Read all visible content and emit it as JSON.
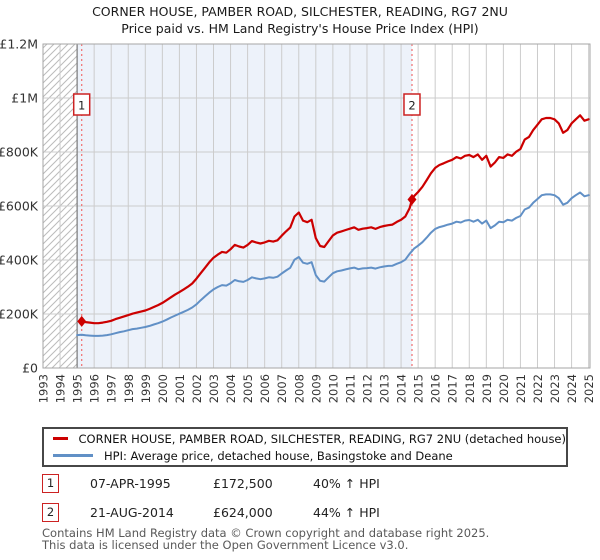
{
  "title": {
    "line1": "CORNER HOUSE, PAMBER ROAD, SILCHESTER, READING, RG7 2NU",
    "line2": "Price paid vs. HM Land Registry's House Price Index (HPI)"
  },
  "colors": {
    "red": "#cc0000",
    "blue": "#6190c6",
    "shade": "#edf2fa",
    "grid": "#cccccc",
    "border": "#a6a6a6",
    "hatch": "#bbbbbb",
    "dotted": "#f26d6d",
    "data_start_line": "#7a7a7a",
    "axis_text": "#333333",
    "marker_border": "#cc2222"
  },
  "chart_data": {
    "type": "line",
    "title": "Price paid vs. HM Land Registry's House Price Index (HPI)",
    "xlabel": "",
    "ylabel": "Price (GBP)",
    "x_domain": [
      1993,
      2025.08
    ],
    "y_domain_gbp": [
      0,
      1200000
    ],
    "grid": true,
    "x_ticks": [
      1993,
      1994,
      1995,
      1996,
      1997,
      1998,
      1999,
      2000,
      2001,
      2002,
      2003,
      2004,
      2005,
      2006,
      2007,
      2008,
      2009,
      2010,
      2011,
      2012,
      2013,
      2014,
      2015,
      2016,
      2017,
      2018,
      2019,
      2020,
      2021,
      2022,
      2023,
      2024,
      2025
    ],
    "y_ticks": [
      {
        "value_gbpk": 0,
        "label": "£0"
      },
      {
        "value_gbpk": 200,
        "label": "£200K"
      },
      {
        "value_gbpk": 400,
        "label": "£400K"
      },
      {
        "value_gbpk": 600,
        "label": "£600K"
      },
      {
        "value_gbpk": 800,
        "label": "£800K"
      },
      {
        "value_gbpk": 1000,
        "label": "£1M"
      },
      {
        "value_gbpk": 1200,
        "label": "£1.2M"
      }
    ],
    "hatch_region_end_year": 1995.0,
    "shaded_region_years": [
      1995.0,
      2014.64
    ],
    "legend_position": "bottom",
    "series": [
      {
        "name": "CORNER HOUSE, PAMBER ROAD, SILCHESTER, READING, RG7 2NU (detached house)",
        "color_key": "red",
        "points_year_gbpk": [
          [
            1995.27,
            172.5
          ],
          [
            1995.5,
            170
          ],
          [
            1995.75,
            168
          ],
          [
            1996,
            166
          ],
          [
            1996.25,
            166
          ],
          [
            1996.5,
            168
          ],
          [
            1996.75,
            171
          ],
          [
            1997,
            175
          ],
          [
            1997.25,
            181
          ],
          [
            1997.5,
            186
          ],
          [
            1997.75,
            191
          ],
          [
            1998,
            196
          ],
          [
            1998.25,
            201
          ],
          [
            1998.5,
            205
          ],
          [
            1998.75,
            209
          ],
          [
            1999,
            213
          ],
          [
            1999.25,
            219
          ],
          [
            1999.5,
            226
          ],
          [
            1999.75,
            233
          ],
          [
            2000,
            241
          ],
          [
            2000.25,
            251
          ],
          [
            2000.5,
            262
          ],
          [
            2000.75,
            272
          ],
          [
            2001,
            281
          ],
          [
            2001.25,
            291
          ],
          [
            2001.5,
            301
          ],
          [
            2001.75,
            313
          ],
          [
            2002,
            331
          ],
          [
            2002.25,
            351
          ],
          [
            2002.5,
            371
          ],
          [
            2002.75,
            391
          ],
          [
            2003,
            408
          ],
          [
            2003.25,
            420
          ],
          [
            2003.5,
            430
          ],
          [
            2003.75,
            427
          ],
          [
            2004,
            440
          ],
          [
            2004.25,
            456
          ],
          [
            2004.5,
            450
          ],
          [
            2004.75,
            446
          ],
          [
            2005,
            456
          ],
          [
            2005.25,
            470
          ],
          [
            2005.5,
            465
          ],
          [
            2005.75,
            461
          ],
          [
            2006,
            465
          ],
          [
            2006.25,
            471
          ],
          [
            2006.5,
            468
          ],
          [
            2006.75,
            473
          ],
          [
            2007,
            490
          ],
          [
            2007.25,
            506
          ],
          [
            2007.5,
            520
          ],
          [
            2007.75,
            561
          ],
          [
            2008,
            576
          ],
          [
            2008.25,
            546
          ],
          [
            2008.5,
            540
          ],
          [
            2008.75,
            549
          ],
          [
            2009,
            481
          ],
          [
            2009.25,
            452
          ],
          [
            2009.5,
            448
          ],
          [
            2009.75,
            470
          ],
          [
            2010,
            491
          ],
          [
            2010.25,
            501
          ],
          [
            2010.5,
            506
          ],
          [
            2010.75,
            511
          ],
          [
            2011,
            516
          ],
          [
            2011.25,
            521
          ],
          [
            2011.5,
            512
          ],
          [
            2011.75,
            516
          ],
          [
            2012,
            518
          ],
          [
            2012.25,
            521
          ],
          [
            2012.5,
            515
          ],
          [
            2012.75,
            522
          ],
          [
            2013,
            526
          ],
          [
            2013.25,
            529
          ],
          [
            2013.5,
            531
          ],
          [
            2013.75,
            541
          ],
          [
            2014,
            549
          ],
          [
            2014.25,
            561
          ],
          [
            2014.5,
            592
          ],
          [
            2014.64,
            624
          ],
          [
            2014.75,
            636
          ],
          [
            2015,
            652
          ],
          [
            2015.25,
            671
          ],
          [
            2015.5,
            696
          ],
          [
            2015.75,
            721
          ],
          [
            2016,
            741
          ],
          [
            2016.25,
            752
          ],
          [
            2016.5,
            758
          ],
          [
            2016.75,
            765
          ],
          [
            2017,
            771
          ],
          [
            2017.25,
            781
          ],
          [
            2017.5,
            776
          ],
          [
            2017.75,
            786
          ],
          [
            2018,
            789
          ],
          [
            2018.25,
            781
          ],
          [
            2018.5,
            791
          ],
          [
            2018.75,
            771
          ],
          [
            2019,
            786
          ],
          [
            2019.25,
            746
          ],
          [
            2019.5,
            761
          ],
          [
            2019.75,
            781
          ],
          [
            2020,
            778
          ],
          [
            2020.25,
            791
          ],
          [
            2020.5,
            786
          ],
          [
            2020.75,
            801
          ],
          [
            2021,
            811
          ],
          [
            2021.25,
            846
          ],
          [
            2021.5,
            856
          ],
          [
            2021.75,
            881
          ],
          [
            2022,
            901
          ],
          [
            2022.25,
            921
          ],
          [
            2022.5,
            926
          ],
          [
            2022.75,
            926
          ],
          [
            2023,
            921
          ],
          [
            2023.25,
            906
          ],
          [
            2023.5,
            871
          ],
          [
            2023.75,
            881
          ],
          [
            2024,
            906
          ],
          [
            2024.25,
            921
          ],
          [
            2024.5,
            936
          ],
          [
            2024.75,
            916
          ],
          [
            2025,
            921
          ]
        ]
      },
      {
        "name": "HPI: Average price, detached house, Basingstoke and Deane",
        "color_key": "blue",
        "points_year_gbpk": [
          [
            1995,
            122
          ],
          [
            1995.27,
            123
          ],
          [
            1995.5,
            121
          ],
          [
            1995.75,
            120
          ],
          [
            1996,
            119
          ],
          [
            1996.25,
            119
          ],
          [
            1996.5,
            120
          ],
          [
            1996.75,
            122
          ],
          [
            1997,
            125
          ],
          [
            1997.25,
            129
          ],
          [
            1997.5,
            133
          ],
          [
            1997.75,
            136
          ],
          [
            1998,
            140
          ],
          [
            1998.25,
            144
          ],
          [
            1998.5,
            146
          ],
          [
            1998.75,
            149
          ],
          [
            1999,
            152
          ],
          [
            1999.25,
            156
          ],
          [
            1999.5,
            161
          ],
          [
            1999.75,
            166
          ],
          [
            2000,
            172
          ],
          [
            2000.25,
            179
          ],
          [
            2000.5,
            187
          ],
          [
            2000.75,
            194
          ],
          [
            2001,
            201
          ],
          [
            2001.25,
            208
          ],
          [
            2001.5,
            215
          ],
          [
            2001.75,
            224
          ],
          [
            2002,
            236
          ],
          [
            2002.25,
            251
          ],
          [
            2002.5,
            265
          ],
          [
            2002.75,
            279
          ],
          [
            2003,
            291
          ],
          [
            2003.25,
            300
          ],
          [
            2003.5,
            307
          ],
          [
            2003.75,
            305
          ],
          [
            2004,
            314
          ],
          [
            2004.25,
            326
          ],
          [
            2004.5,
            321
          ],
          [
            2004.75,
            319
          ],
          [
            2005,
            326
          ],
          [
            2005.25,
            336
          ],
          [
            2005.5,
            332
          ],
          [
            2005.75,
            329
          ],
          [
            2006,
            332
          ],
          [
            2006.25,
            336
          ],
          [
            2006.5,
            334
          ],
          [
            2006.75,
            338
          ],
          [
            2007,
            350
          ],
          [
            2007.25,
            361
          ],
          [
            2007.5,
            371
          ],
          [
            2007.75,
            401
          ],
          [
            2008,
            411
          ],
          [
            2008.25,
            390
          ],
          [
            2008.5,
            386
          ],
          [
            2008.75,
            392
          ],
          [
            2009,
            344
          ],
          [
            2009.25,
            323
          ],
          [
            2009.5,
            320
          ],
          [
            2009.75,
            336
          ],
          [
            2010,
            351
          ],
          [
            2010.25,
            358
          ],
          [
            2010.5,
            361
          ],
          [
            2010.75,
            365
          ],
          [
            2011,
            369
          ],
          [
            2011.25,
            372
          ],
          [
            2011.5,
            366
          ],
          [
            2011.75,
            369
          ],
          [
            2012,
            370
          ],
          [
            2012.25,
            372
          ],
          [
            2012.5,
            368
          ],
          [
            2012.75,
            373
          ],
          [
            2013,
            376
          ],
          [
            2013.25,
            378
          ],
          [
            2013.5,
            379
          ],
          [
            2013.75,
            386
          ],
          [
            2014,
            392
          ],
          [
            2014.25,
            401
          ],
          [
            2014.5,
            423
          ],
          [
            2014.64,
            433
          ],
          [
            2014.75,
            442
          ],
          [
            2015,
            453
          ],
          [
            2015.25,
            466
          ],
          [
            2015.5,
            483
          ],
          [
            2015.75,
            501
          ],
          [
            2016,
            515
          ],
          [
            2016.25,
            522
          ],
          [
            2016.5,
            526
          ],
          [
            2016.75,
            531
          ],
          [
            2017,
            535
          ],
          [
            2017.25,
            542
          ],
          [
            2017.5,
            539
          ],
          [
            2017.75,
            546
          ],
          [
            2018,
            548
          ],
          [
            2018.25,
            542
          ],
          [
            2018.5,
            549
          ],
          [
            2018.75,
            535
          ],
          [
            2019,
            546
          ],
          [
            2019.25,
            518
          ],
          [
            2019.5,
            528
          ],
          [
            2019.75,
            542
          ],
          [
            2020,
            540
          ],
          [
            2020.25,
            549
          ],
          [
            2020.5,
            546
          ],
          [
            2020.75,
            556
          ],
          [
            2021,
            563
          ],
          [
            2021.25,
            587
          ],
          [
            2021.5,
            594
          ],
          [
            2021.75,
            612
          ],
          [
            2022,
            626
          ],
          [
            2022.25,
            640
          ],
          [
            2022.5,
            643
          ],
          [
            2022.75,
            643
          ],
          [
            2023,
            640
          ],
          [
            2023.25,
            629
          ],
          [
            2023.5,
            605
          ],
          [
            2023.75,
            612
          ],
          [
            2024,
            629
          ],
          [
            2024.25,
            640
          ],
          [
            2024.5,
            650
          ],
          [
            2024.75,
            636
          ],
          [
            2025,
            640
          ]
        ]
      }
    ],
    "markers": [
      {
        "id": "1",
        "year": 1995.27,
        "price_gbpk": 172.5
      },
      {
        "id": "2",
        "year": 2014.64,
        "price_gbpk": 624
      }
    ]
  },
  "transactions": [
    {
      "marker": "1",
      "date": "07-APR-1995",
      "price": "£172,500",
      "vs_hpi": "40% ↑ HPI"
    },
    {
      "marker": "2",
      "date": "21-AUG-2014",
      "price": "£624,000",
      "vs_hpi": "44% ↑ HPI"
    }
  ],
  "footer": {
    "line1": "Contains HM Land Registry data © Crown copyright and database right 2025.",
    "line2": "This data is licensed under the Open Government Licence v3.0."
  }
}
